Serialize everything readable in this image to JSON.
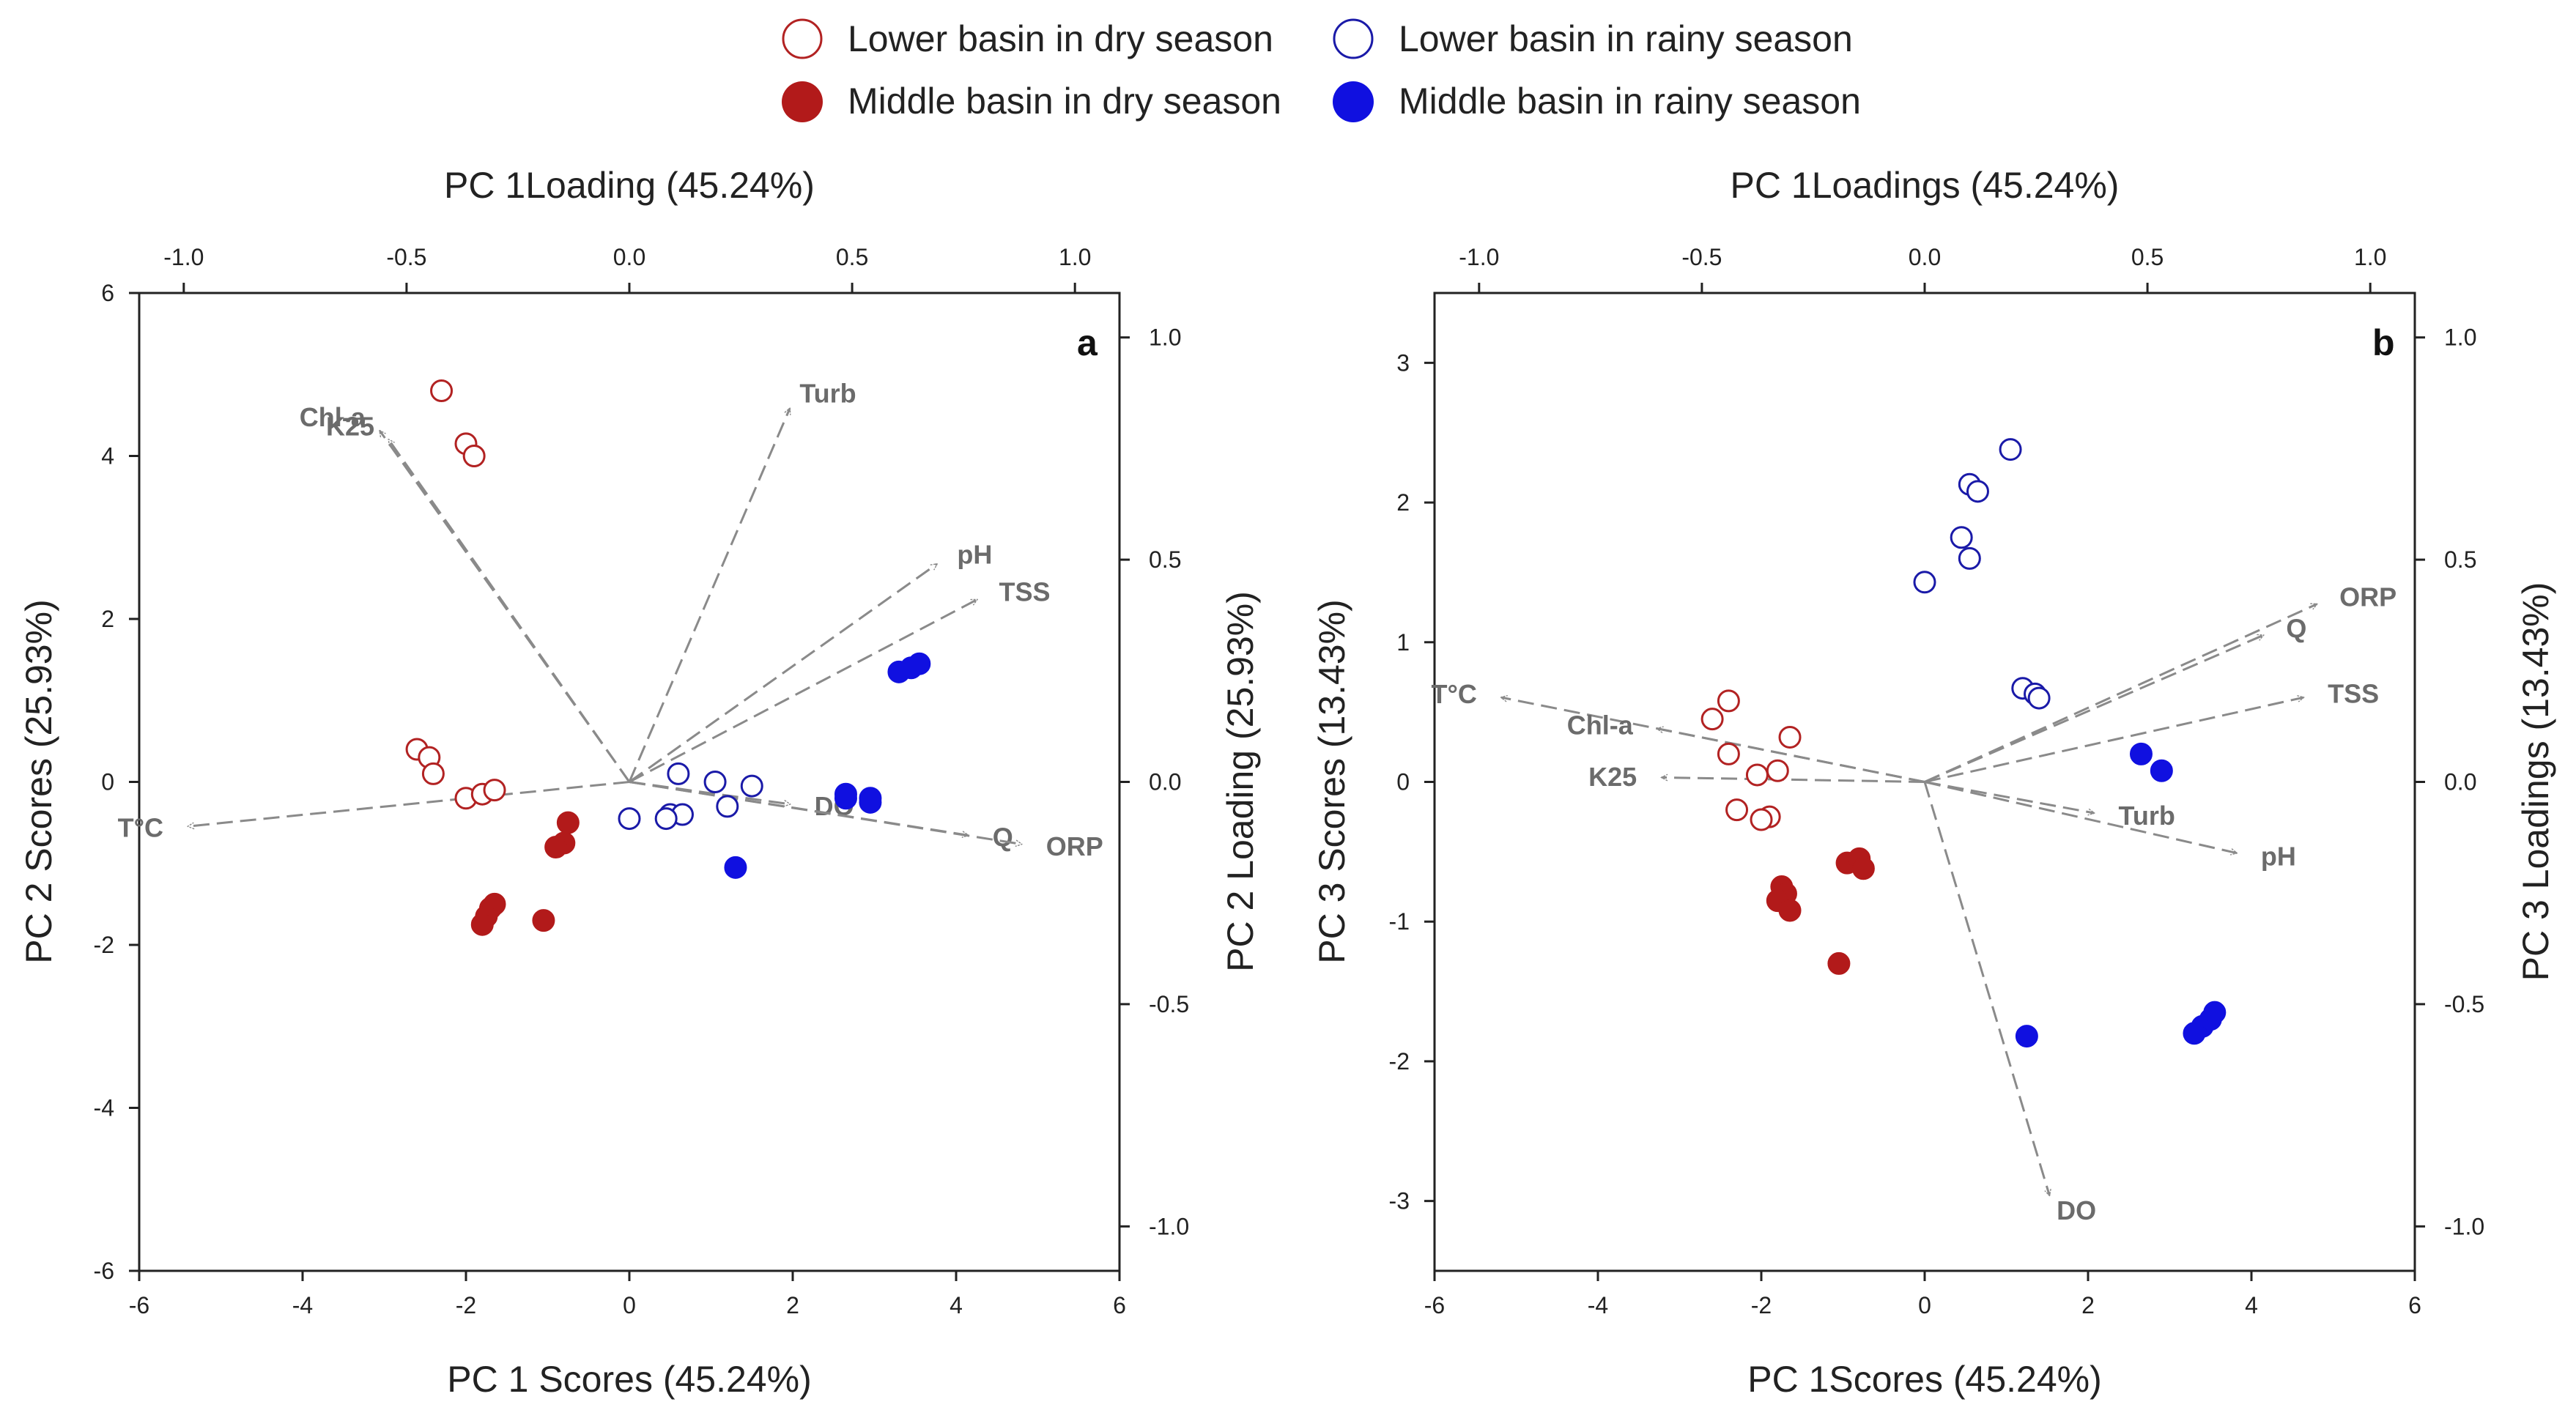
{
  "legend": {
    "items": [
      {
        "label": "Lower basin in dry season",
        "color": "#b22222",
        "filled": false
      },
      {
        "label": "Lower basin in rainy season",
        "color": "#1a1aa8",
        "filled": false
      },
      {
        "label": "Middle basin in dry season",
        "color": "#b21a1a",
        "filled": true
      },
      {
        "label": "Middle basin in rainy season",
        "color": "#1010e0",
        "filled": true
      }
    ]
  },
  "chart_data": [
    {
      "type": "scatter",
      "panel": "a",
      "xlabel": "PC 1 Scores (45.24%)",
      "ylabel": "PC 2 Scores (25.93%)",
      "top_xlabel": "PC 1Loading (45.24%)",
      "right_ylabel": "PC 2 Loading (25.93%)",
      "xlim": [
        -6,
        6
      ],
      "ylim": [
        -6,
        6
      ],
      "loading_xlim": [
        -1.1,
        1.1
      ],
      "loading_ylim": [
        -1.1,
        1.1
      ],
      "x_ticks": [
        "-6",
        "-4",
        "-2",
        "0",
        "2",
        "4",
        "6"
      ],
      "y_ticks": [
        "-6",
        "-4",
        "-2",
        "0",
        "2",
        "4",
        "6"
      ],
      "top_ticks": [
        "-1.0",
        "-0.5",
        "0.0",
        "0.5",
        "1.0"
      ],
      "right_ticks": [
        "-1.0",
        "-0.5",
        "0.0",
        "0.5",
        "1.0"
      ],
      "series": [
        {
          "name": "Lower basin in dry season",
          "points": [
            [
              -2.3,
              4.8
            ],
            [
              -2.0,
              4.15
            ],
            [
              -1.9,
              4.0
            ],
            [
              -2.6,
              0.4
            ],
            [
              -2.45,
              0.3
            ],
            [
              -2.4,
              0.1
            ],
            [
              -2.0,
              -0.2
            ],
            [
              -1.8,
              -0.15
            ],
            [
              -1.65,
              -0.1
            ]
          ]
        },
        {
          "name": "Lower basin in rainy season",
          "points": [
            [
              0.6,
              0.1
            ],
            [
              1.05,
              0.0
            ],
            [
              1.5,
              -0.05
            ],
            [
              0.5,
              -0.4
            ],
            [
              0.65,
              -0.4
            ],
            [
              1.2,
              -0.3
            ],
            [
              0.0,
              -0.45
            ],
            [
              0.45,
              -0.45
            ]
          ]
        },
        {
          "name": "Middle basin in dry season",
          "points": [
            [
              -0.75,
              -0.5
            ],
            [
              -0.8,
              -0.75
            ],
            [
              -0.9,
              -0.8
            ],
            [
              -1.65,
              -1.5
            ],
            [
              -1.7,
              -1.55
            ],
            [
              -1.75,
              -1.65
            ],
            [
              -1.8,
              -1.75
            ],
            [
              -1.05,
              -1.7
            ]
          ]
        },
        {
          "name": "Middle basin in rainy season",
          "points": [
            [
              3.3,
              1.35
            ],
            [
              3.45,
              1.4
            ],
            [
              3.55,
              1.45
            ],
            [
              2.65,
              -0.15
            ],
            [
              2.65,
              -0.2
            ],
            [
              2.95,
              -0.2
            ],
            [
              2.95,
              -0.25
            ],
            [
              1.3,
              -1.05
            ]
          ]
        }
      ],
      "vectors": [
        {
          "name": "Chl-a",
          "x": -0.56,
          "y": 0.79
        },
        {
          "name": "K25",
          "x": -0.54,
          "y": 0.77
        },
        {
          "name": "Turb",
          "x": 0.36,
          "y": 0.84
        },
        {
          "name": "pH",
          "x": 0.69,
          "y": 0.49
        },
        {
          "name": "TSS",
          "x": 0.78,
          "y": 0.41
        },
        {
          "name": "T°C",
          "x": -0.99,
          "y": -0.1
        },
        {
          "name": "DO",
          "x": 0.36,
          "y": -0.05
        },
        {
          "name": "Q",
          "x": 0.76,
          "y": -0.12
        },
        {
          "name": "ORP",
          "x": 0.88,
          "y": -0.14
        }
      ]
    },
    {
      "type": "scatter",
      "panel": "b",
      "xlabel": "PC 1Scores (45.24%)",
      "ylabel": "PC 3 Scores (13.43%)",
      "top_xlabel": "PC 1Loadings (45.24%)",
      "right_ylabel": "PC 3 Loadings (13.43%)",
      "xlim": [
        -6,
        6
      ],
      "ylim": [
        -3.5,
        3.5
      ],
      "loading_xlim": [
        -1.1,
        1.1
      ],
      "loading_ylim": [
        -1.1,
        1.1
      ],
      "x_ticks": [
        "-6",
        "-4",
        "-2",
        "0",
        "2",
        "4",
        "6"
      ],
      "y_ticks": [
        "-3",
        "-2",
        "-1",
        "0",
        "1",
        "2",
        "3"
      ],
      "top_ticks": [
        "-1.0",
        "-0.5",
        "0.0",
        "0.5",
        "1.0"
      ],
      "right_ticks": [
        "-1.0",
        "-0.5",
        "0.0",
        "0.5",
        "1.0"
      ],
      "series": [
        {
          "name": "Lower basin in dry season",
          "points": [
            [
              -2.4,
              0.58
            ],
            [
              -2.6,
              0.45
            ],
            [
              -1.65,
              0.32
            ],
            [
              -2.4,
              0.2
            ],
            [
              -1.8,
              0.08
            ],
            [
              -2.05,
              0.05
            ],
            [
              -2.3,
              -0.2
            ],
            [
              -1.9,
              -0.25
            ],
            [
              -2.0,
              -0.27
            ]
          ]
        },
        {
          "name": "Lower basin in rainy season",
          "points": [
            [
              1.05,
              2.38
            ],
            [
              0.55,
              2.13
            ],
            [
              0.65,
              2.08
            ],
            [
              0.45,
              1.75
            ],
            [
              0.55,
              1.6
            ],
            [
              0.0,
              1.43
            ],
            [
              1.2,
              0.67
            ],
            [
              1.35,
              0.63
            ],
            [
              1.4,
              0.6
            ]
          ]
        },
        {
          "name": "Middle basin in dry season",
          "points": [
            [
              -1.75,
              -0.75
            ],
            [
              -1.7,
              -0.8
            ],
            [
              -1.8,
              -0.85
            ],
            [
              -1.65,
              -0.92
            ],
            [
              -0.95,
              -0.58
            ],
            [
              -0.8,
              -0.55
            ],
            [
              -0.75,
              -0.62
            ],
            [
              -1.05,
              -1.3
            ]
          ]
        },
        {
          "name": "Middle basin in rainy season",
          "points": [
            [
              2.65,
              0.2
            ],
            [
              2.9,
              0.08
            ],
            [
              1.25,
              -1.82
            ],
            [
              3.3,
              -1.8
            ],
            [
              3.4,
              -1.75
            ],
            [
              3.5,
              -1.7
            ],
            [
              3.55,
              -1.65
            ]
          ]
        }
      ],
      "vectors": [
        {
          "name": "ORP",
          "x": 0.88,
          "y": 0.4
        },
        {
          "name": "Q",
          "x": 0.76,
          "y": 0.33
        },
        {
          "name": "TSS",
          "x": 0.85,
          "y": 0.19
        },
        {
          "name": "T°C",
          "x": -0.95,
          "y": 0.19
        },
        {
          "name": "Chl-a",
          "x": -0.6,
          "y": 0.12
        },
        {
          "name": "K25",
          "x": -0.59,
          "y": 0.01
        },
        {
          "name": "Turb",
          "x": 0.38,
          "y": -0.07
        },
        {
          "name": "pH",
          "x": 0.7,
          "y": -0.16
        },
        {
          "name": "DO",
          "x": 0.28,
          "y": -0.93
        }
      ]
    }
  ]
}
